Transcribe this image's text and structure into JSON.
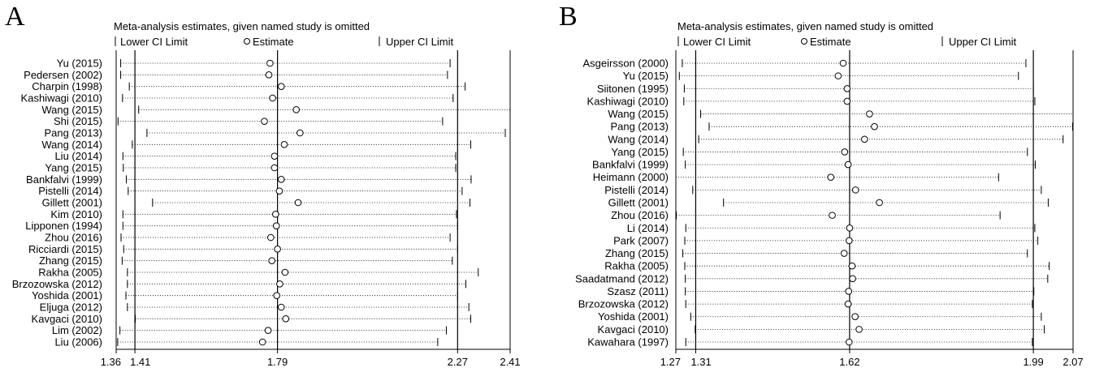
{
  "chart_data": [
    {
      "type": "forest",
      "panel_label": "A",
      "title": "Meta-analysis estimates, given named study is omitted",
      "legend": [
        "Lower CI Limit",
        "Estimate",
        "Upper CI Limit"
      ],
      "xlim": [
        1.36,
        2.41
      ],
      "xticks": [
        1.36,
        1.41,
        1.79,
        2.27,
        2.41
      ],
      "xtick_labels": [
        "1.36",
        "1.41",
        "1.79",
        "2.27",
        "2.41"
      ],
      "reference_lines": [
        1.41,
        1.79,
        2.27
      ],
      "studies": [
        {
          "name": "Yu (2015)",
          "lower": 1.372,
          "estimate": 1.77,
          "upper": 2.25
        },
        {
          "name": "Pedersen (2002)",
          "lower": 1.372,
          "estimate": 1.767,
          "upper": 2.243
        },
        {
          "name": "Charpin (1998)",
          "lower": 1.395,
          "estimate": 1.8,
          "upper": 2.29
        },
        {
          "name": "Kashiwagi (2010)",
          "lower": 1.377,
          "estimate": 1.777,
          "upper": 2.258
        },
        {
          "name": "Wang (2015)",
          "lower": 1.42,
          "estimate": 1.84,
          "upper": 2.41
        },
        {
          "name": "Shi (2015)",
          "lower": 1.365,
          "estimate": 1.755,
          "upper": 2.23
        },
        {
          "name": "Pang (2013)",
          "lower": 1.442,
          "estimate": 1.85,
          "upper": 2.397
        },
        {
          "name": "Wang (2014)",
          "lower": 1.403,
          "estimate": 1.808,
          "upper": 2.305
        },
        {
          "name": "Liu (2014)",
          "lower": 1.378,
          "estimate": 1.782,
          "upper": 2.265
        },
        {
          "name": "Yang (2015)",
          "lower": 1.379,
          "estimate": 1.782,
          "upper": 2.265
        },
        {
          "name": "Bankfalvi (1999)",
          "lower": 1.387,
          "estimate": 1.8,
          "upper": 2.306
        },
        {
          "name": "Pistelli (2014)",
          "lower": 1.392,
          "estimate": 1.795,
          "upper": 2.282
        },
        {
          "name": "Gillett (2001)",
          "lower": 1.457,
          "estimate": 1.845,
          "upper": 2.303
        },
        {
          "name": "Kim (2010)",
          "lower": 1.378,
          "estimate": 1.785,
          "upper": 2.267
        },
        {
          "name": "Lipponen (1994)",
          "lower": 1.378,
          "estimate": 1.787,
          "upper": 2.27
        },
        {
          "name": "Zhou (2016)",
          "lower": 1.373,
          "estimate": 1.772,
          "upper": 2.25
        },
        {
          "name": "Ricciardi (2015)",
          "lower": 1.38,
          "estimate": 1.79,
          "upper": 2.27
        },
        {
          "name": "Zhang (2015)",
          "lower": 1.376,
          "estimate": 1.775,
          "upper": 2.256
        },
        {
          "name": "Rakha (2005)",
          "lower": 1.39,
          "estimate": 1.81,
          "upper": 2.325
        },
        {
          "name": "Brzozowska (2012)",
          "lower": 1.39,
          "estimate": 1.796,
          "upper": 2.292
        },
        {
          "name": "Yoshida (2001)",
          "lower": 1.386,
          "estimate": 1.788,
          "upper": 2.27
        },
        {
          "name": "Eljuga (2012)",
          "lower": 1.39,
          "estimate": 1.8,
          "upper": 2.3
        },
        {
          "name": "Kavgaci (2010)",
          "lower": 1.411,
          "estimate": 1.812,
          "upper": 2.305
        },
        {
          "name": "Lim (2002)",
          "lower": 1.37,
          "estimate": 1.765,
          "upper": 2.24
        },
        {
          "name": "Liu (2006)",
          "lower": 1.364,
          "estimate": 1.75,
          "upper": 2.217
        }
      ]
    },
    {
      "type": "forest",
      "panel_label": "B",
      "title": "Meta-analysis estimates, given named study is omitted",
      "legend": [
        "Lower CI Limit",
        "Estimate",
        "Upper CI Limit"
      ],
      "xlim": [
        1.27,
        2.07
      ],
      "xticks": [
        1.27,
        1.31,
        1.62,
        1.99,
        2.07
      ],
      "xtick_labels": [
        "1.27",
        "1.31",
        "1.62",
        "1.99",
        "2.07"
      ],
      "reference_lines": [
        1.31,
        1.62,
        1.99
      ],
      "studies": [
        {
          "name": "Asgeirsson (2000)",
          "lower": 1.283,
          "estimate": 1.607,
          "upper": 1.975
        },
        {
          "name": "Yu (2015)",
          "lower": 1.277,
          "estimate": 1.597,
          "upper": 1.96
        },
        {
          "name": "Siitonen (1995)",
          "lower": 1.287,
          "estimate": 1.615,
          "upper": 1.99
        },
        {
          "name": "Kashiwagi (2010)",
          "lower": 1.286,
          "estimate": 1.615,
          "upper": 1.993
        },
        {
          "name": "Wang (2015)",
          "lower": 1.32,
          "estimate": 1.66,
          "upper": 2.07
        },
        {
          "name": "Pang (2013)",
          "lower": 1.337,
          "estimate": 1.67,
          "upper": 2.069
        },
        {
          "name": "Wang (2014)",
          "lower": 1.316,
          "estimate": 1.65,
          "upper": 2.05
        },
        {
          "name": "Yang (2015)",
          "lower": 1.285,
          "estimate": 1.61,
          "upper": 1.978
        },
        {
          "name": "Bankfalvi (1999)",
          "lower": 1.289,
          "estimate": 1.617,
          "upper": 1.994
        },
        {
          "name": "Heimann (2000)",
          "lower": 1.27,
          "estimate": 1.582,
          "upper": 1.92
        },
        {
          "name": "Pistelli (2014)",
          "lower": 1.304,
          "estimate": 1.632,
          "upper": 2.006
        },
        {
          "name": "Gillett (2001)",
          "lower": 1.366,
          "estimate": 1.68,
          "upper": 2.02
        },
        {
          "name": "Zhou (2016)",
          "lower": 1.271,
          "estimate": 1.585,
          "upper": 1.923
        },
        {
          "name": "Li (2014)",
          "lower": 1.29,
          "estimate": 1.62,
          "upper": 1.993
        },
        {
          "name": "Park (2007)",
          "lower": 1.288,
          "estimate": 1.619,
          "upper": 1.999
        },
        {
          "name": "Zhang (2015)",
          "lower": 1.284,
          "estimate": 1.609,
          "upper": 1.978
        },
        {
          "name": "Rakha (2005)",
          "lower": 1.288,
          "estimate": 1.625,
          "upper": 2.022
        },
        {
          "name": "Saadatmand (2012)",
          "lower": 1.289,
          "estimate": 1.626,
          "upper": 2.019
        },
        {
          "name": "Szasz (2011)",
          "lower": 1.289,
          "estimate": 1.618,
          "upper": 1.991
        },
        {
          "name": "Brzozowska (2012)",
          "lower": 1.29,
          "estimate": 1.617,
          "upper": 1.988
        },
        {
          "name": "Yoshida (2001)",
          "lower": 1.3,
          "estimate": 1.631,
          "upper": 2.006
        },
        {
          "name": "Kavgaci (2010)",
          "lower": 1.309,
          "estimate": 1.639,
          "upper": 2.012
        },
        {
          "name": "Kawahara (1997)",
          "lower": 1.29,
          "estimate": 1.619,
          "upper": 1.988
        }
      ]
    }
  ]
}
